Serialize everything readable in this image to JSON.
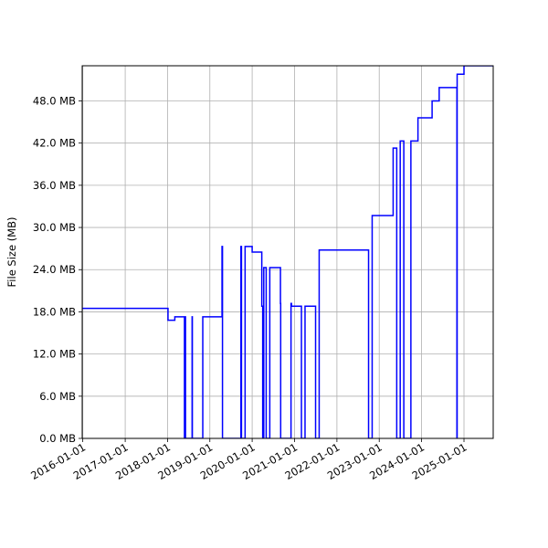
{
  "chart_data": {
    "type": "line",
    "title": "",
    "xlabel": "",
    "ylabel": "File Size (MB)",
    "xlim": [
      "2015-12-27",
      "2025-09-10"
    ],
    "ylim": [
      0,
      53
    ],
    "grid": true,
    "line_color": "#0000ff",
    "x_ticks": [
      "2016-01-01",
      "2017-01-01",
      "2018-01-01",
      "2019-01-01",
      "2020-01-01",
      "2021-01-01",
      "2022-01-01",
      "2023-01-01",
      "2024-01-01",
      "2025-01-01"
    ],
    "y_ticks": [
      0,
      6,
      12,
      18,
      24,
      30,
      36,
      42,
      48
    ],
    "y_tick_labels": [
      "0.0 MB",
      "6.0 MB",
      "12.0 MB",
      "18.0 MB",
      "24.0 MB",
      "30.0 MB",
      "36.0 MB",
      "42.0 MB",
      "48.0 MB"
    ],
    "series": [
      {
        "x": [
          "2015-12-27",
          "2017-12-28",
          "2018-01-05",
          "2018-03-05",
          "2018-05-24",
          "2018-05-27",
          "2018-06-01",
          "2018-06-05",
          "2018-08-01",
          "2018-08-03",
          "2018-11-01",
          "2019-04-16",
          "2019-04-20",
          "2019-09-26",
          "2019-10-01",
          "2019-11-01",
          "2020-01-01",
          "2020-03-24",
          "2020-04-01",
          "2020-04-10",
          "2020-05-01",
          "2020-06-01",
          "2020-09-01",
          "2020-09-03",
          "2020-12-01",
          "2020-12-05",
          "2021-03-01",
          "2021-04-01",
          "2021-07-01",
          "2021-08-01",
          "2021-10-01",
          "2022-10-01",
          "2022-11-01",
          "2023-05-01",
          "2023-06-01",
          "2023-07-01",
          "2023-08-01",
          "2023-10-01",
          "2023-12-01",
          "2024-04-01",
          "2024-06-01",
          "2024-11-01",
          "2024-11-03",
          "2025-01-01",
          "2025-05-01",
          "2025-09-10"
        ],
        "y": [
          18.5,
          18.5,
          16.8,
          17.3,
          17.3,
          0,
          17.3,
          0,
          17.3,
          0,
          17.3,
          27.3,
          0,
          27.3,
          0,
          27.3,
          26.5,
          18.8,
          0,
          24.3,
          0,
          24.3,
          19.2,
          0,
          19.2,
          18.8,
          0,
          18.8,
          0,
          26.8,
          26.8,
          0,
          31.7,
          41.3,
          0,
          42.3,
          0,
          42.3,
          45.6,
          48.0,
          49.9,
          0,
          51.8,
          53.0,
          53.0,
          53.0
        ]
      }
    ]
  }
}
